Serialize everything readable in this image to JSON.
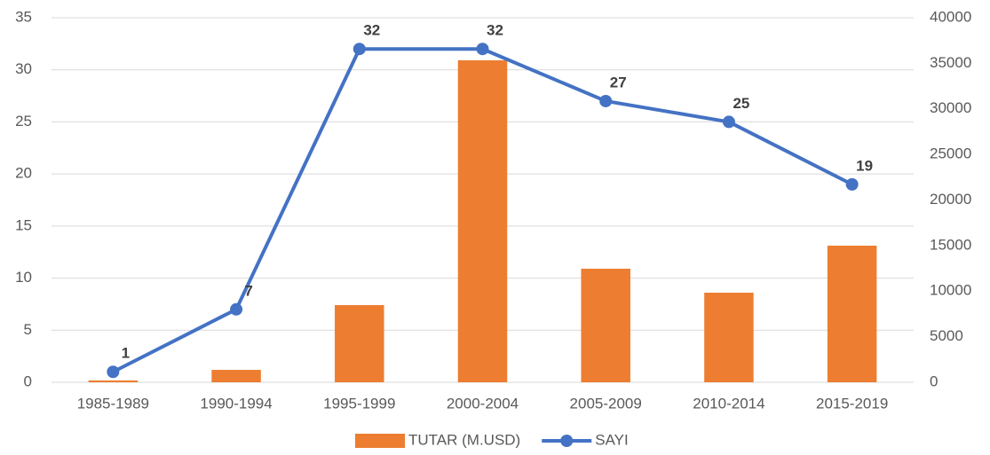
{
  "chart_data": {
    "type": "bar-line",
    "categories": [
      "1985-1989",
      "1990-1994",
      "1995-1999",
      "2000-2004",
      "2005-2009",
      "2010-2014",
      "2015-2019"
    ],
    "series": [
      {
        "name": "TUTAR (M.USD)",
        "type": "bar",
        "axis": "y2",
        "color": "#ed7d31",
        "values": [
          200,
          1360,
          8470,
          35330,
          12460,
          9830,
          14990
        ]
      },
      {
        "name": "SAYI",
        "type": "line",
        "axis": "y",
        "color": "#4472c4",
        "values": [
          1,
          7,
          32,
          32,
          27,
          25,
          19
        ]
      }
    ],
    "ylim": [
      0,
      35
    ],
    "yticks": [
      0,
      5,
      10,
      15,
      20,
      25,
      30,
      35
    ],
    "y2lim": [
      0,
      40000
    ],
    "y2ticks": [
      0,
      5000,
      10000,
      15000,
      20000,
      25000,
      30000,
      35000,
      40000
    ],
    "grid": true,
    "legend": "bottom"
  }
}
